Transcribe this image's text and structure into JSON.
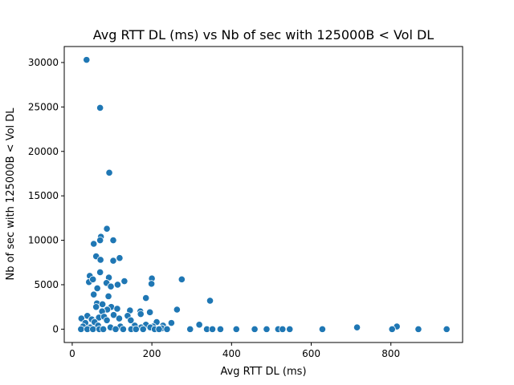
{
  "chart_data": {
    "type": "scatter",
    "title": "Avg RTT DL (ms) vs Nb of sec with 125000B < Vol DL",
    "xlabel": "Avg RTT DL (ms)",
    "ylabel": "Nb of sec with 125000B < Vol DL",
    "xlim": [
      -20,
      980
    ],
    "ylim": [
      -1500,
      31800
    ],
    "xticks": [
      0,
      200,
      400,
      600,
      800
    ],
    "yticks": [
      0,
      5000,
      10000,
      15000,
      20000,
      25000,
      30000
    ],
    "grid": false,
    "color": "#1f77b4",
    "points": [
      [
        36,
        30300
      ],
      [
        70,
        24900
      ],
      [
        93,
        17600
      ],
      [
        87,
        11300
      ],
      [
        72,
        10400
      ],
      [
        70,
        10000
      ],
      [
        103,
        10000
      ],
      [
        54,
        9600
      ],
      [
        60,
        8200
      ],
      [
        119,
        8000
      ],
      [
        71,
        7800
      ],
      [
        103,
        7700
      ],
      [
        70,
        6400
      ],
      [
        44,
        6000
      ],
      [
        92,
        5800
      ],
      [
        131,
        5400
      ],
      [
        200,
        5700
      ],
      [
        275,
        5600
      ],
      [
        42,
        5300
      ],
      [
        52,
        5600
      ],
      [
        86,
        5200
      ],
      [
        97,
        4800
      ],
      [
        63,
        4600
      ],
      [
        114,
        5000
      ],
      [
        199,
        5100
      ],
      [
        346,
        3200
      ],
      [
        54,
        3900
      ],
      [
        91,
        3700
      ],
      [
        185,
        3500
      ],
      [
        62,
        2900
      ],
      [
        76,
        2800
      ],
      [
        98,
        2500
      ],
      [
        60,
        2500
      ],
      [
        88,
        2200
      ],
      [
        75,
        2000
      ],
      [
        113,
        2300
      ],
      [
        145,
        2100
      ],
      [
        171,
        2000
      ],
      [
        195,
        1900
      ],
      [
        263,
        2200
      ],
      [
        38,
        1500
      ],
      [
        67,
        1300
      ],
      [
        104,
        1600
      ],
      [
        139,
        1500
      ],
      [
        172,
        1700
      ],
      [
        23,
        1200
      ],
      [
        49,
        1100
      ],
      [
        80,
        1400
      ],
      [
        118,
        1200
      ],
      [
        147,
        1000
      ],
      [
        212,
        800
      ],
      [
        249,
        700
      ],
      [
        319,
        500
      ],
      [
        33,
        700
      ],
      [
        56,
        800
      ],
      [
        87,
        1000
      ],
      [
        157,
        400
      ],
      [
        185,
        500
      ],
      [
        203,
        300
      ],
      [
        228,
        400
      ],
      [
        27,
        300
      ],
      [
        45,
        200
      ],
      [
        65,
        400
      ],
      [
        96,
        200
      ],
      [
        121,
        300
      ],
      [
        173,
        200
      ],
      [
        196,
        200
      ],
      [
        225,
        100
      ],
      [
        715,
        200
      ],
      [
        815,
        300
      ],
      [
        22,
        0
      ],
      [
        38,
        0
      ],
      [
        52,
        0
      ],
      [
        68,
        0
      ],
      [
        78,
        0
      ],
      [
        109,
        0
      ],
      [
        128,
        0
      ],
      [
        148,
        0
      ],
      [
        160,
        0
      ],
      [
        178,
        0
      ],
      [
        207,
        0
      ],
      [
        218,
        0
      ],
      [
        238,
        0
      ],
      [
        296,
        0
      ],
      [
        338,
        0
      ],
      [
        352,
        0
      ],
      [
        372,
        0
      ],
      [
        412,
        0
      ],
      [
        458,
        0
      ],
      [
        488,
        0
      ],
      [
        517,
        0
      ],
      [
        528,
        0
      ],
      [
        546,
        0
      ],
      [
        628,
        0
      ],
      [
        803,
        0
      ],
      [
        869,
        0
      ],
      [
        940,
        0
      ]
    ]
  }
}
